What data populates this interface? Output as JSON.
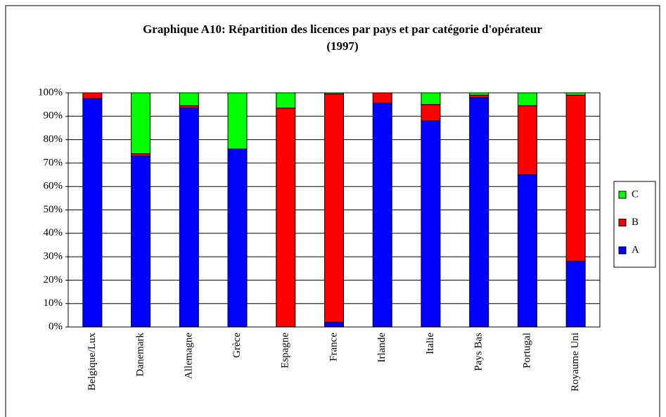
{
  "chart_data": {
    "type": "stacked_bar",
    "title": [
      "Graphique A10: Répartition des licences par pays et par catégorie d'opérateur",
      "(1997)"
    ],
    "categories": [
      "Belgique/Lux",
      "Danemark",
      "Allemagne",
      "Grèce",
      "Espagne",
      "France",
      "Irlande",
      "Italie",
      "Pays Bas",
      "Portugal",
      "Royaume Uni"
    ],
    "series": [
      {
        "name": "A",
        "color": "#0000ff",
        "values": [
          97.5,
          73,
          93.5,
          76,
          0,
          2,
          95.5,
          88,
          98,
          65,
          28
        ]
      },
      {
        "name": "B",
        "color": "#ff0000",
        "values": [
          2.5,
          1,
          1,
          0,
          93.5,
          97.5,
          4.5,
          7,
          1,
          29.5,
          71
        ]
      },
      {
        "name": "C",
        "color": "#00ff00",
        "values": [
          0,
          26,
          5.5,
          24,
          6.5,
          0.5,
          0,
          5,
          1,
          5.5,
          1
        ]
      }
    ],
    "ylim": [
      0,
      100
    ],
    "yticks": [
      {
        "value": 0,
        "label": "0%"
      },
      {
        "value": 10,
        "label": "10%"
      },
      {
        "value": 20,
        "label": "20%"
      },
      {
        "value": 30,
        "label": "30%"
      },
      {
        "value": 40,
        "label": "40%"
      },
      {
        "value": 50,
        "label": "50%"
      },
      {
        "value": 60,
        "label": "60%"
      },
      {
        "value": 70,
        "label": "70%"
      },
      {
        "value": 80,
        "label": "80%"
      },
      {
        "value": 90,
        "label": "90%"
      },
      {
        "value": 100,
        "label": "100%"
      }
    ],
    "grid": true,
    "legend": "right"
  }
}
